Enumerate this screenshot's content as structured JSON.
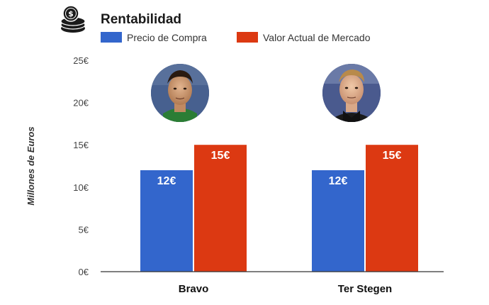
{
  "chart_data": {
    "type": "bar",
    "title": "Rentabilidad",
    "ylabel": "Millones de Euros",
    "xlabel": "",
    "ylim": [
      0,
      25
    ],
    "yticks": [
      0,
      5,
      10,
      15,
      20,
      25
    ],
    "ytick_labels": [
      "0€",
      "5€",
      "10€",
      "15€",
      "20€",
      "25€"
    ],
    "categories": [
      "Bravo",
      "Ter Stegen"
    ],
    "series": [
      {
        "name": "Precio de Compra",
        "color": "#3366cc",
        "values": [
          12,
          12
        ],
        "labels": [
          "12€",
          "12€"
        ]
      },
      {
        "name": "Valor Actual de Mercado",
        "color": "#dc3912",
        "values": [
          15,
          15
        ],
        "labels": [
          "15€",
          "15€"
        ]
      }
    ],
    "legend": "top-left",
    "grid": false
  },
  "icons": {
    "title_icon": "money-coins-icon",
    "category_images": [
      "player-bravo-photo",
      "player-ter-stegen-photo"
    ]
  }
}
